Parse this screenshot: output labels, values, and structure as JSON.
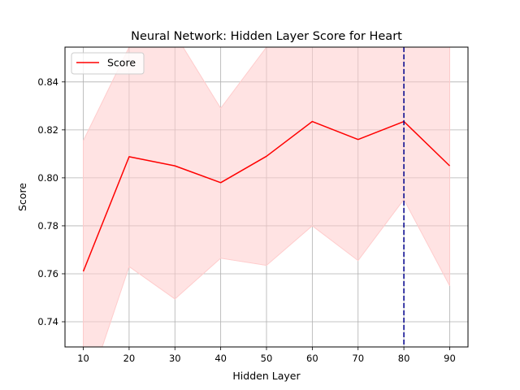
{
  "chart_data": {
    "type": "line",
    "title": "Neural Network: Hidden Layer Score for Heart",
    "xlabel": "Hidden Layer",
    "ylabel": "Score",
    "x": [
      10,
      20,
      30,
      40,
      50,
      60,
      70,
      80,
      90
    ],
    "series": [
      {
        "name": "Score",
        "color": "#ff0000",
        "values": [
          0.761,
          0.8088,
          0.805,
          0.798,
          0.809,
          0.8235,
          0.816,
          0.8235,
          0.805
        ],
        "band_lower": [
          0.706,
          0.763,
          0.7495,
          0.7665,
          0.7635,
          0.78,
          0.7655,
          0.791,
          0.755
        ],
        "band_upper": [
          0.8155,
          0.8545,
          0.86,
          0.829,
          0.8545,
          0.867,
          0.8665,
          0.856,
          0.855
        ],
        "band_color": "#ffcccc"
      }
    ],
    "vline": {
      "x": 80,
      "color": "#00008b",
      "style": "dashed"
    },
    "xlim": [
      6,
      94
    ],
    "ylim": [
      0.7295,
      0.8545
    ],
    "xticks": [
      10,
      20,
      30,
      40,
      50,
      60,
      70,
      80,
      90
    ],
    "yticks": [
      0.74,
      0.76,
      0.78,
      0.8,
      0.82,
      0.84
    ],
    "ytick_labels": [
      "0.74",
      "0.76",
      "0.78",
      "0.80",
      "0.82",
      "0.84"
    ],
    "grid": true,
    "legend": {
      "position": "top-left",
      "entries": [
        "Score"
      ]
    }
  }
}
